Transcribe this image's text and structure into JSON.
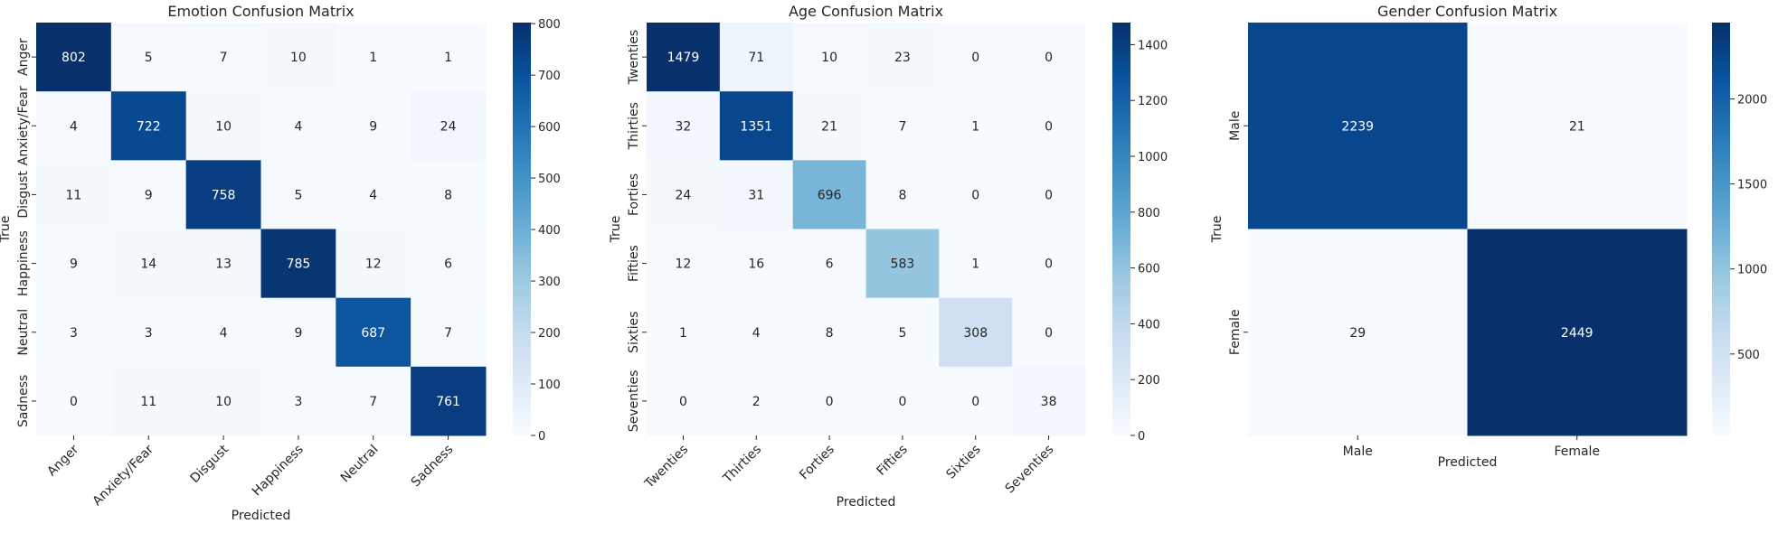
{
  "chart_data": [
    {
      "type": "heatmap",
      "title": "Emotion Confusion Matrix",
      "xlabel": "Predicted",
      "ylabel": "True",
      "labels": [
        "Anger",
        "Anxiety/Fear",
        "Disgust",
        "Happiness",
        "Neutral",
        "Sadness"
      ],
      "matrix": [
        [
          802,
          5,
          7,
          10,
          1,
          1
        ],
        [
          4,
          722,
          10,
          4,
          9,
          24
        ],
        [
          11,
          9,
          758,
          5,
          4,
          8
        ],
        [
          9,
          14,
          13,
          785,
          12,
          6
        ],
        [
          3,
          3,
          4,
          9,
          687,
          7
        ],
        [
          0,
          11,
          10,
          3,
          7,
          761
        ]
      ],
      "colormap": "Blues",
      "vmin": 0,
      "vmax": 802,
      "colorbar_ticks": [
        0,
        100,
        200,
        300,
        400,
        500,
        600,
        700,
        800
      ],
      "rotate_x_labels": true
    },
    {
      "type": "heatmap",
      "title": "Age Confusion Matrix",
      "xlabel": "Predicted",
      "ylabel": "True",
      "labels": [
        "Twenties",
        "Thirties",
        "Forties",
        "Fifties",
        "Sixties",
        "Seventies"
      ],
      "matrix": [
        [
          1479,
          71,
          10,
          23,
          0,
          0
        ],
        [
          32,
          1351,
          21,
          7,
          1,
          0
        ],
        [
          24,
          31,
          696,
          8,
          0,
          0
        ],
        [
          12,
          16,
          6,
          583,
          1,
          0
        ],
        [
          1,
          4,
          8,
          5,
          308,
          0
        ],
        [
          0,
          2,
          0,
          0,
          0,
          38
        ]
      ],
      "colormap": "Blues",
      "vmin": 0,
      "vmax": 1479,
      "colorbar_ticks": [
        0,
        200,
        400,
        600,
        800,
        1000,
        1200,
        1400
      ],
      "rotate_x_labels": true
    },
    {
      "type": "heatmap",
      "title": "Gender Confusion Matrix",
      "xlabel": "Predicted",
      "ylabel": "True",
      "labels": [
        "Male",
        "Female"
      ],
      "matrix": [
        [
          2239,
          21
        ],
        [
          29,
          2449
        ]
      ],
      "colormap": "Blues",
      "vmin": 21,
      "vmax": 2449,
      "colorbar_ticks": [
        500,
        1000,
        1500,
        2000
      ],
      "rotate_x_labels": false
    }
  ]
}
